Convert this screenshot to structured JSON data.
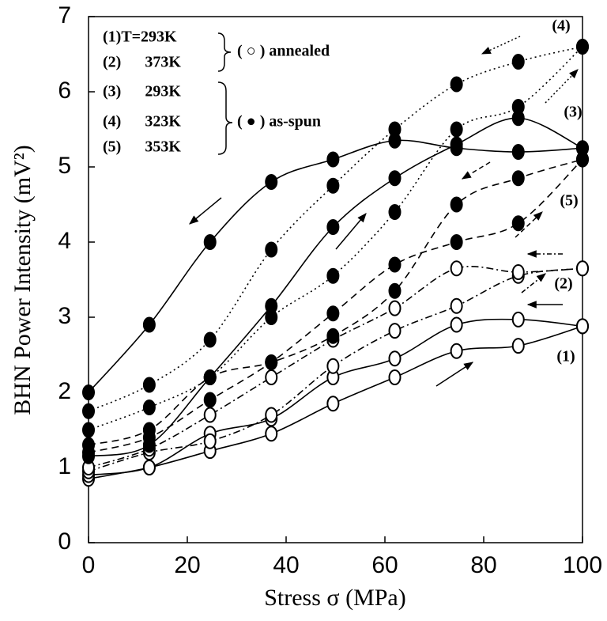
{
  "chart_data": {
    "type": "line",
    "x_label": "Stress σ (MPa)",
    "y_label": "BHN Power Intensity (mV²)",
    "x": [
      0,
      12.3,
      24.6,
      37,
      49.5,
      62,
      74.5,
      87,
      100
    ],
    "xlim": [
      0,
      100
    ],
    "xticks": [
      0,
      20,
      40,
      60,
      80,
      100
    ],
    "ylim": [
      0,
      7
    ],
    "yticks": [
      0,
      1,
      2,
      3,
      4,
      5,
      6,
      7
    ],
    "color": "#000000",
    "series": [
      {
        "marker": "open",
        "dash": "solid",
        "values": [
          0.85,
          1.0,
          1.22,
          1.45,
          1.85,
          2.2,
          2.55,
          2.62,
          2.88
        ]
      },
      {
        "marker": "open",
        "dash": "solid",
        "values": [
          0.9,
          1.0,
          1.45,
          1.65,
          2.2,
          2.45,
          2.9,
          2.97,
          2.88
        ]
      },
      {
        "marker": "open",
        "dash": "dashdot",
        "values": [
          0.95,
          1.2,
          1.35,
          1.7,
          2.35,
          2.82,
          3.15,
          3.55,
          3.65
        ]
      },
      {
        "marker": "open",
        "dash": "dashdot",
        "values": [
          1.0,
          1.25,
          1.7,
          2.2,
          2.7,
          3.12,
          3.65,
          3.6,
          3.65
        ]
      },
      {
        "marker": "filled",
        "dash": "solid",
        "values": [
          1.15,
          1.3,
          2.2,
          3.15,
          4.2,
          4.85,
          5.3,
          5.65,
          5.25
        ]
      },
      {
        "marker": "filled",
        "dash": "solid",
        "values": [
          2.0,
          2.9,
          4.0,
          4.8,
          5.1,
          5.35,
          5.25,
          5.2,
          5.25
        ]
      },
      {
        "marker": "filled",
        "dash": "dotted",
        "values": [
          1.5,
          1.8,
          2.2,
          3.0,
          3.55,
          4.4,
          5.5,
          5.8,
          6.6
        ]
      },
      {
        "marker": "filled",
        "dash": "dotted",
        "values": [
          1.75,
          2.1,
          2.7,
          3.9,
          4.75,
          5.5,
          6.1,
          6.4,
          6.6
        ]
      },
      {
        "marker": "filled",
        "dash": "dashed",
        "values": [
          1.2,
          1.4,
          1.9,
          2.4,
          3.05,
          3.7,
          4.0,
          4.25,
          5.1
        ]
      },
      {
        "marker": "filled",
        "dash": "dashed",
        "values": [
          1.3,
          1.5,
          2.2,
          2.4,
          2.75,
          3.35,
          4.5,
          4.85,
          5.1
        ]
      }
    ],
    "legend_text": [
      "(1)T=293K",
      "(2)      373K",
      "(3)      293K",
      "(4)      323K",
      "(5)      353K"
    ],
    "legend_groups": [
      "( ○ ) annealed",
      "( ● ) as-spun"
    ],
    "annotations": [
      "(4)",
      "(3)",
      "(5)",
      "(2)",
      "(1)"
    ]
  }
}
